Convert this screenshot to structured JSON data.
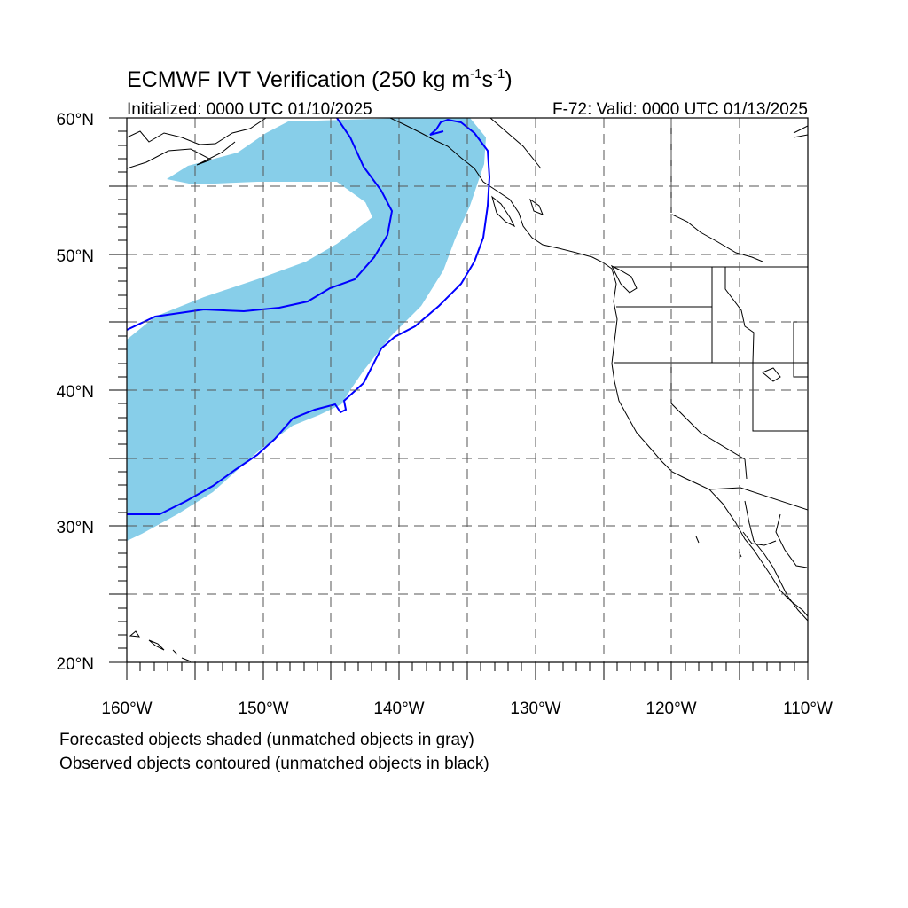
{
  "figure": {
    "title_main": "ECMWF IVT Verification (250 kg m",
    "title_exp1": "-1",
    "title_s": "s",
    "title_exp2": "-1",
    "title_close": ")",
    "initialized": "Initialized: 0000 UTC 01/10/2025",
    "valid": "F-72: Valid: 0000 UTC 01/13/2025"
  },
  "map": {
    "lon_range": [
      -160,
      -110
    ],
    "lat_range": [
      20,
      60
    ],
    "lat_labels": [
      "60°N",
      "50°N",
      "40°N",
      "30°N",
      "20°N"
    ],
    "lon_labels": [
      "160°W",
      "150°W",
      "140°W",
      "130°W",
      "120°W",
      "110°W"
    ],
    "grid": true,
    "forecast_color": "#87CEE9",
    "observed_color": "#0000ff",
    "coast_color": "#000000"
  },
  "notes": [
    "Forecasted objects shaded (unmatched objects in gray)",
    "Observed objects contoured (unmatched objects in black)"
  ]
}
